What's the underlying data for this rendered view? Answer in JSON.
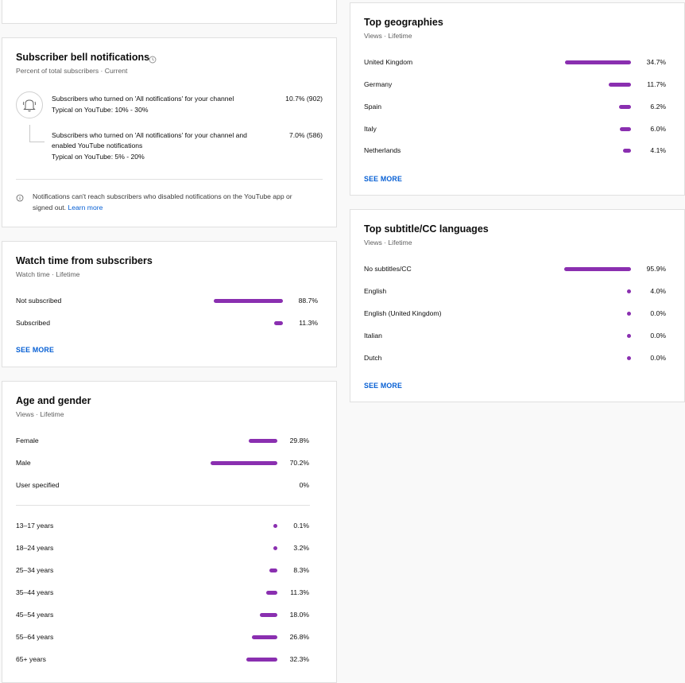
{
  "bell": {
    "title": "Subscriber bell notifications",
    "subtitle": "Percent of total subscribers · Current",
    "all_notifications_text": "Subscribers who turned on 'All notifications' for your channel",
    "all_notifications_typical": "Typical on YouTube: 10% - 30%",
    "all_notifications_value": "10.7% (902)",
    "enabled_text_line1": "Subscribers who turned on 'All notifications' for your channel and",
    "enabled_text_line2": "enabled YouTube notifications",
    "enabled_typical": "Typical on YouTube: 5% - 20%",
    "enabled_value": "7.0% (586)",
    "note_line1": "Notifications can't reach subscribers who disabled notifications on the YouTube app or",
    "note_line2": "signed out.",
    "learn_more": "Learn more"
  },
  "watch_time": {
    "title": "Watch time from subscribers",
    "subtitle": "Watch time · Lifetime",
    "rows": [
      {
        "label": "Not subscribed",
        "value": "88.7%",
        "fraction": 0.887
      },
      {
        "label": "Subscribed",
        "value": "11.3%",
        "fraction": 0.113
      }
    ],
    "see_more": "SEE MORE"
  },
  "age_gender": {
    "title": "Age and gender",
    "subtitle": "Views · Lifetime",
    "gender_rows": [
      {
        "label": "Female",
        "value": "29.8%",
        "fraction": 0.298
      },
      {
        "label": "Male",
        "value": "70.2%",
        "fraction": 0.702
      },
      {
        "label": "User specified",
        "value": "0%",
        "fraction": 0
      }
    ],
    "age_rows": [
      {
        "label": "13–17 years",
        "value": "0.1%",
        "fraction": 0.001
      },
      {
        "label": "18–24 years",
        "value": "3.2%",
        "fraction": 0.032
      },
      {
        "label": "25–34 years",
        "value": "8.3%",
        "fraction": 0.083
      },
      {
        "label": "35–44 years",
        "value": "11.3%",
        "fraction": 0.113
      },
      {
        "label": "45–54 years",
        "value": "18.0%",
        "fraction": 0.18
      },
      {
        "label": "55–64 years",
        "value": "26.8%",
        "fraction": 0.268
      },
      {
        "label": "65+ years",
        "value": "32.3%",
        "fraction": 0.323
      }
    ]
  },
  "geographies": {
    "title": "Top geographies",
    "subtitle": "Views · Lifetime",
    "rows": [
      {
        "label": "United Kingdom",
        "value": "34.7%",
        "fraction": 0.347
      },
      {
        "label": "Germany",
        "value": "11.7%",
        "fraction": 0.117
      },
      {
        "label": "Spain",
        "value": "6.2%",
        "fraction": 0.062
      },
      {
        "label": "Italy",
        "value": "6.0%",
        "fraction": 0.06
      },
      {
        "label": "Netherlands",
        "value": "4.1%",
        "fraction": 0.041
      }
    ],
    "see_more": "SEE MORE"
  },
  "subtitles": {
    "title": "Top subtitle/CC languages",
    "subtitle": "Views · Lifetime",
    "rows": [
      {
        "label": "No subtitles/CC",
        "value": "95.9%",
        "fraction": 0.959
      },
      {
        "label": "English",
        "value": "4.0%",
        "fraction": 0.04
      },
      {
        "label": "English (United Kingdom)",
        "value": "0.0%",
        "fraction": 0
      },
      {
        "label": "Italian",
        "value": "0.0%",
        "fraction": 0
      },
      {
        "label": "Dutch",
        "value": "0.0%",
        "fraction": 0
      }
    ],
    "see_more": "SEE MORE"
  },
  "colors": {
    "bar": "#8a2fb0",
    "link": "#065fd4"
  },
  "icons": {
    "bell": "bell-icon",
    "info": "info-icon",
    "clock": "clock-icon"
  }
}
